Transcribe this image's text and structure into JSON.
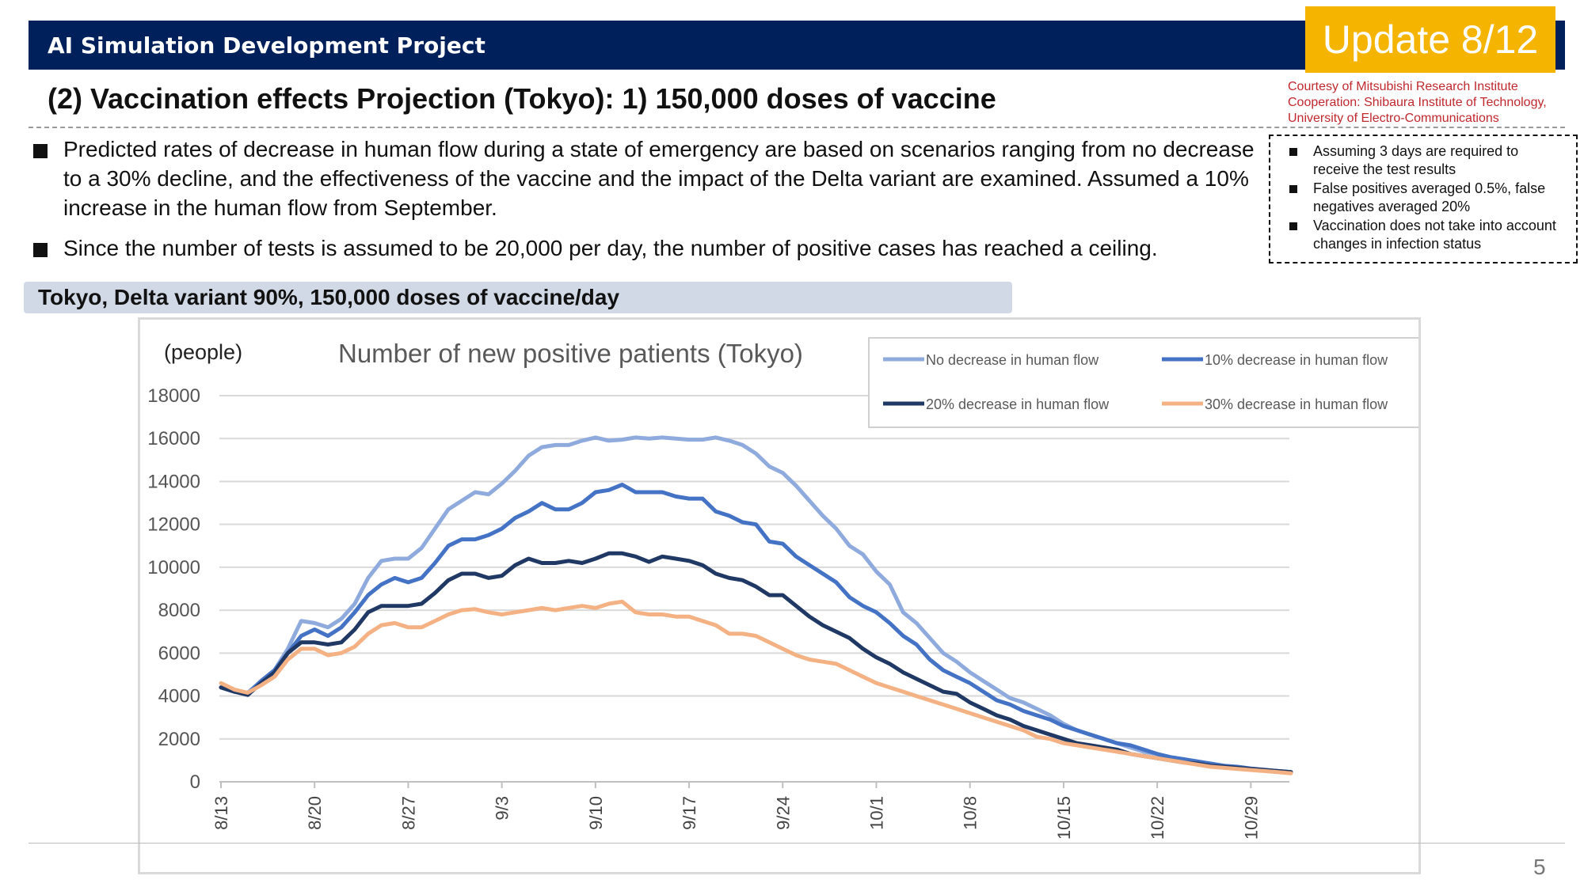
{
  "header": {
    "project": "AI Simulation Development Project",
    "update": "Update 8/12",
    "title": "(2) Vaccination effects Projection (Tokyo): 1) 150,000 doses of vaccine",
    "courtesy": [
      "Courtesy of Mitsubishi Research Institute",
      "Cooperation: Shibaura Institute of Technology,",
      "University of Electro-Communications"
    ]
  },
  "bullets": [
    "Predicted rates of decrease in human flow during a state of emergency are based on scenarios ranging from no decrease to a 30% decline, and the effectiveness of the vaccine and the impact of the Delta variant are examined. Assumed a 10% increase in the human flow from September.",
    "Since the number of tests is assumed to be 20,000 per day, the number of positive cases has reached a ceiling."
  ],
  "assumptions": [
    "Assuming 3 days are required to receive the test results",
    "False positives averaged 0.5%, false negatives averaged 20%",
    "Vaccination does not take into account changes in infection status"
  ],
  "section_label": "Tokyo, Delta variant 90%, 150,000 doses of vaccine/day",
  "page_number": "5",
  "colors": {
    "header_bg": "#00205b",
    "badge_bg": "#f4b400",
    "courtesy_text": "#c0282d",
    "section_bg": "#d1d9e6"
  },
  "chart_data": {
    "type": "line",
    "title": "Number of new positive patients (Tokyo)",
    "ylabel": "(people)",
    "xlabel": "",
    "ylim": [
      0,
      18000
    ],
    "yticks": [
      0,
      2000,
      4000,
      6000,
      8000,
      10000,
      12000,
      14000,
      16000,
      18000
    ],
    "grid": true,
    "legend_position": "top-right",
    "x_start": "8/13",
    "x_end": "11/1",
    "x_tick_labels": [
      "8/13",
      "8/20",
      "8/27",
      "9/3",
      "9/10",
      "9/17",
      "9/24",
      "10/1",
      "10/8",
      "10/15",
      "10/22",
      "10/29"
    ],
    "series": [
      {
        "name": "No decrease in human flow",
        "color": "#8faadc",
        "values": [
          4400,
          4200,
          4150,
          4700,
          5200,
          6200,
          7500,
          7400,
          7200,
          7600,
          8300,
          9500,
          10300,
          10400,
          10400,
          10900,
          11800,
          12700,
          13100,
          13500,
          13400,
          13900,
          14500,
          15200,
          15600,
          15700,
          15700,
          15900,
          16050,
          15900,
          15950,
          16050,
          16000,
          16050,
          16000,
          15950,
          15950,
          16050,
          15900,
          15700,
          15300,
          14700,
          14400,
          13800,
          13100,
          12400,
          11800,
          11000,
          10600,
          9800,
          9200,
          7900,
          7400,
          6700,
          6000,
          5600,
          5100,
          4700,
          4300,
          3900,
          3700,
          3400,
          3100,
          2700,
          2400,
          2200,
          2000,
          1800,
          1600,
          1400,
          1300,
          1100,
          1000,
          900,
          800,
          700,
          650,
          600,
          550,
          500,
          450
        ]
      },
      {
        "name": "10% decrease in human flow",
        "color": "#4472c4",
        "values": [
          4400,
          4200,
          4100,
          4700,
          5200,
          6000,
          6800,
          7100,
          6800,
          7200,
          7900,
          8700,
          9200,
          9500,
          9300,
          9500,
          10200,
          11000,
          11300,
          11300,
          11500,
          11800,
          12300,
          12600,
          13000,
          12700,
          12700,
          13000,
          13500,
          13600,
          13850,
          13500,
          13500,
          13500,
          13300,
          13200,
          13200,
          12600,
          12400,
          12100,
          12000,
          11200,
          11100,
          10500,
          10100,
          9700,
          9300,
          8600,
          8200,
          7900,
          7400,
          6800,
          6400,
          5700,
          5200,
          4900,
          4600,
          4200,
          3800,
          3600,
          3300,
          3100,
          2900,
          2600,
          2400,
          2200,
          2000,
          1800,
          1700,
          1500,
          1300,
          1150,
          1050,
          950,
          850,
          750,
          700,
          620,
          560,
          500,
          450
        ]
      },
      {
        "name": "20% decrease in human flow",
        "color": "#1f3864",
        "values": [
          4400,
          4200,
          4050,
          4600,
          5100,
          6000,
          6500,
          6500,
          6400,
          6500,
          7100,
          7900,
          8200,
          8200,
          8200,
          8300,
          8800,
          9400,
          9700,
          9700,
          9500,
          9600,
          10100,
          10400,
          10200,
          10200,
          10300,
          10200,
          10400,
          10650,
          10650,
          10500,
          10250,
          10500,
          10400,
          10300,
          10100,
          9700,
          9500,
          9400,
          9100,
          8700,
          8700,
          8200,
          7700,
          7300,
          7000,
          6700,
          6200,
          5800,
          5500,
          5100,
          4800,
          4500,
          4200,
          4100,
          3700,
          3400,
          3100,
          2900,
          2600,
          2400,
          2200,
          2000,
          1800,
          1700,
          1600,
          1500,
          1300,
          1200,
          1100,
          1000,
          900,
          850,
          750,
          700,
          650,
          600,
          550,
          500,
          450
        ]
      },
      {
        "name": "30% decrease in human flow",
        "color": "#f4b183",
        "values": [
          4600,
          4300,
          4150,
          4500,
          4900,
          5700,
          6200,
          6200,
          5900,
          6000,
          6300,
          6900,
          7300,
          7400,
          7200,
          7200,
          7500,
          7800,
          8000,
          8050,
          7900,
          7800,
          7900,
          8000,
          8100,
          8000,
          8100,
          8200,
          8100,
          8300,
          8400,
          7900,
          7800,
          7800,
          7700,
          7700,
          7500,
          7300,
          6900,
          6900,
          6800,
          6500,
          6200,
          5900,
          5700,
          5600,
          5500,
          5200,
          4900,
          4600,
          4400,
          4200,
          4000,
          3800,
          3600,
          3400,
          3200,
          3000,
          2800,
          2600,
          2400,
          2100,
          2000,
          1800,
          1700,
          1600,
          1500,
          1400,
          1300,
          1200,
          1100,
          1000,
          900,
          800,
          700,
          650,
          600,
          550,
          500,
          450,
          400
        ]
      }
    ]
  }
}
